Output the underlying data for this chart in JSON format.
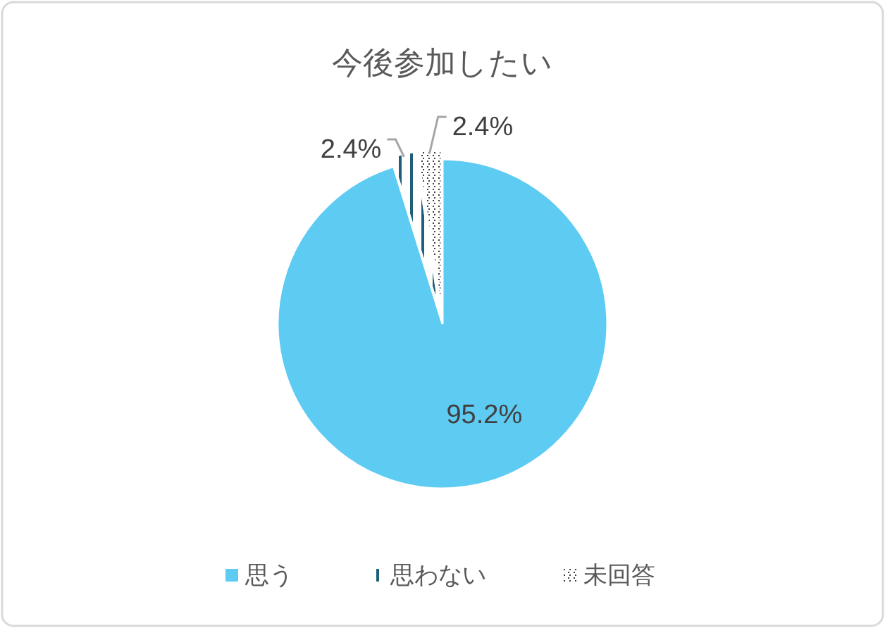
{
  "chart_data": {
    "type": "pie",
    "title": "今後参加したい",
    "categories": [
      "思う",
      "思わない",
      "未回答"
    ],
    "values": [
      95.2,
      2.4,
      2.4
    ],
    "colors": [
      "#5ecbf3",
      "#1f5f7a",
      "#404040"
    ],
    "value_labels": [
      "95.2%",
      "2.4%",
      "2.4%"
    ],
    "legend": "bottom"
  }
}
